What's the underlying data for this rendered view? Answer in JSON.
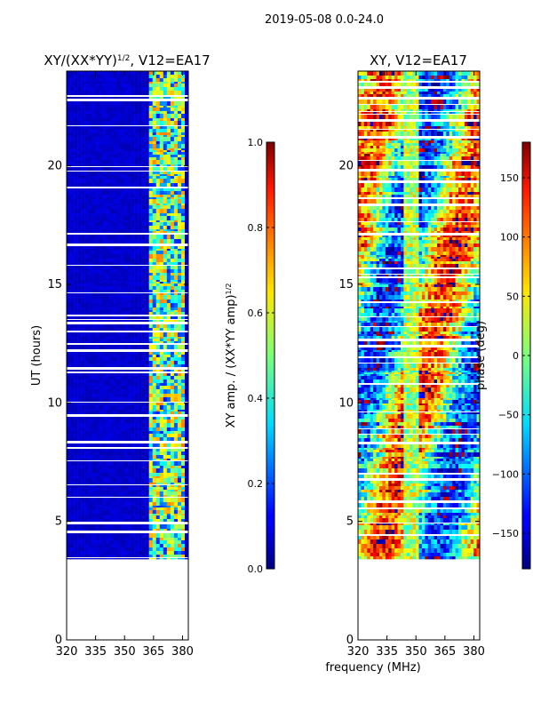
{
  "figure": {
    "suptitle": "2019-05-08 0.0-24.0",
    "shared_xlabel": "frequency (MHz)"
  },
  "chart_data": [
    {
      "type": "heatmap",
      "title_main": "XY/(XX*YY)",
      "title_sup": "1/2",
      "title_tail": ", V12=EA17",
      "ylabel": "UT (hours)",
      "xlim": [
        320,
        383
      ],
      "ylim": [
        0,
        24
      ],
      "x_ticks": [
        320,
        335,
        350,
        365,
        380
      ],
      "y_ticks": [
        0,
        5,
        10,
        15,
        20
      ],
      "data_start_hour": 3.4,
      "data_end_hour": 24,
      "colorbar": {
        "label_main": "XY amp. / (XX*YY amp)",
        "label_sup": "1/2",
        "range": [
          0,
          1
        ],
        "ticks": [
          "0.0",
          "0.2",
          "0.4",
          "0.6",
          "0.8",
          "1.0"
        ],
        "tick_values": [
          0,
          0.2,
          0.4,
          0.6,
          0.8,
          1.0
        ]
      },
      "colors": {
        "background_value": 0.05,
        "band_value_range": [
          0.35,
          0.75
        ]
      }
    },
    {
      "type": "heatmap",
      "title": "XY, V12=EA17",
      "ylabel": "",
      "xlim": [
        320,
        383
      ],
      "ylim": [
        0,
        24
      ],
      "x_ticks": [
        320,
        335,
        350,
        365,
        380
      ],
      "y_ticks": [
        0,
        5,
        10,
        15,
        20
      ],
      "data_start_hour": 3.4,
      "data_end_hour": 24,
      "colorbar": {
        "label": "phase (deg)",
        "range": [
          -180,
          180
        ],
        "ticks": [
          "−150",
          "−100",
          "−50",
          "0",
          "50",
          "100",
          "150"
        ],
        "tick_values": [
          -150,
          -100,
          -50,
          0,
          50,
          100,
          150
        ]
      }
    }
  ]
}
